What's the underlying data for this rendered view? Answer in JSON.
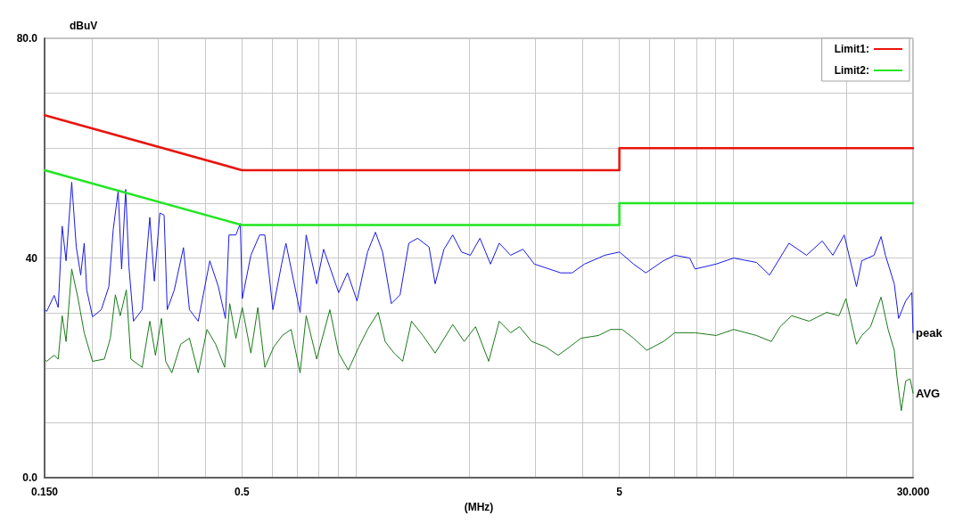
{
  "chart_data": {
    "type": "line",
    "ylabel": "dBuV",
    "xlabel": "(MHz)",
    "log": "x",
    "grid": true,
    "legend": "top right",
    "marker": "none",
    "line_style": "solid",
    "xlim": [
      0.15,
      30
    ],
    "ylim": [
      0,
      80
    ],
    "xticks": [
      {
        "value": 0.15,
        "label": "0.150"
      },
      {
        "value": 0.2,
        "label": null
      },
      {
        "value": 0.3,
        "label": null
      },
      {
        "value": 0.4,
        "label": null
      },
      {
        "value": 0.5,
        "label": "0.5"
      },
      {
        "value": 0.6,
        "label": null
      },
      {
        "value": 0.7,
        "label": null
      },
      {
        "value": 0.8,
        "label": null
      },
      {
        "value": 0.9,
        "label": null
      },
      {
        "value": 1,
        "label": null
      },
      {
        "value": 2,
        "label": null
      },
      {
        "value": 3,
        "label": null
      },
      {
        "value": 4,
        "label": null
      },
      {
        "value": 5,
        "label": "5"
      },
      {
        "value": 6,
        "label": null
      },
      {
        "value": 7,
        "label": null
      },
      {
        "value": 8,
        "label": null
      },
      {
        "value": 9,
        "label": null
      },
      {
        "value": 10,
        "label": null
      },
      {
        "value": 20,
        "label": null
      },
      {
        "value": 30,
        "label": "30.000"
      }
    ],
    "yticks": [
      {
        "value": 0,
        "label": "0.0"
      },
      {
        "value": 10,
        "label": null
      },
      {
        "value": 20,
        "label": null
      },
      {
        "value": 30,
        "label": null
      },
      {
        "value": 40,
        "label": "40"
      },
      {
        "value": 50,
        "label": null
      },
      {
        "value": 60,
        "label": null
      },
      {
        "value": 70,
        "label": null
      },
      {
        "value": 80,
        "label": "80.0"
      }
    ],
    "series": [
      {
        "name": "Limit1:",
        "color": "#e8140c",
        "x": [
          0.15,
          0.5,
          5,
          5,
          30
        ],
        "values": [
          66,
          56,
          56,
          60,
          60
        ]
      },
      {
        "name": "Limit2:",
        "color": "#22e622",
        "x": [
          0.15,
          0.5,
          5,
          5,
          30
        ],
        "values": [
          56,
          46,
          46,
          50,
          50
        ]
      },
      {
        "color": "#1a1ae6",
        "x": [
          0.15,
          0.152,
          0.159,
          0.163,
          0.167,
          0.171,
          0.177,
          0.182,
          0.187,
          0.191,
          0.194,
          0.201,
          0.212,
          0.222,
          0.228,
          0.235,
          0.24,
          0.246,
          0.251,
          0.258,
          0.272,
          0.285,
          0.293,
          0.303,
          0.311,
          0.317,
          0.331,
          0.35,
          0.363,
          0.383,
          0.411,
          0.433,
          0.452,
          0.462,
          0.482,
          0.495,
          0.501,
          0.528,
          0.557,
          0.575,
          0.604,
          0.637,
          0.654,
          0.713,
          0.74,
          0.789,
          0.823,
          0.902,
          0.952,
          1.009,
          1.076,
          1.129,
          1.179,
          1.244,
          1.312,
          1.384,
          1.46,
          1.566,
          1.625,
          1.715,
          1.809,
          1.909,
          2.014,
          2.136,
          2.278,
          2.403,
          2.576,
          2.777,
          2.977,
          3.261,
          3.496,
          3.748,
          4.041,
          4.401,
          4.57,
          5.006,
          5.452,
          5.877,
          6.541,
          7.011,
          7.68,
          7.931,
          9.019,
          10.04,
          11.54,
          12.5,
          14.07,
          15.66,
          17.24,
          18.39,
          19.71,
          21.24,
          21.94,
          23.64,
          24.68,
          25.35,
          26.75,
          27.47,
          28.68,
          29.77,
          30
        ],
        "values": [
          30.6,
          30.3,
          33.2,
          31,
          45.8,
          39.5,
          53.8,
          42,
          36.9,
          42.7,
          34.2,
          29.3,
          30.6,
          34.8,
          45.2,
          52.2,
          38,
          52.5,
          38.4,
          28.5,
          30.6,
          47.4,
          35.8,
          48.2,
          47.8,
          30.6,
          34.2,
          41.9,
          30.6,
          28.5,
          39.5,
          34.8,
          29,
          44.2,
          44.2,
          46.3,
          32.6,
          40.5,
          44.2,
          44.2,
          30.6,
          38.9,
          42.7,
          30.1,
          44.2,
          35.3,
          41.6,
          33.7,
          37.3,
          32.2,
          41.1,
          44.7,
          41.1,
          31.7,
          33.3,
          42.7,
          43.6,
          42,
          35.3,
          41.6,
          44.2,
          41.1,
          40.5,
          43.6,
          38.9,
          42.7,
          40.5,
          41.6,
          38.9,
          38,
          37.3,
          37.3,
          38.9,
          40,
          40.5,
          41.1,
          38.9,
          37.3,
          39.5,
          40.5,
          40,
          38,
          38.9,
          40,
          39.2,
          36.9,
          42.7,
          40.5,
          43.1,
          40.5,
          44.2,
          34.8,
          39.5,
          40.5,
          43.9,
          40.5,
          35.3,
          29,
          32.2,
          33.7,
          26.4
        ]
      },
      {
        "color": "#1a7a1a",
        "x": [
          0.15,
          0.152,
          0.159,
          0.163,
          0.167,
          0.171,
          0.177,
          0.184,
          0.191,
          0.201,
          0.216,
          0.224,
          0.231,
          0.238,
          0.247,
          0.254,
          0.272,
          0.285,
          0.295,
          0.306,
          0.314,
          0.326,
          0.344,
          0.363,
          0.383,
          0.404,
          0.426,
          0.45,
          0.464,
          0.482,
          0.501,
          0.528,
          0.551,
          0.575,
          0.607,
          0.64,
          0.675,
          0.713,
          0.74,
          0.789,
          0.855,
          0.902,
          0.957,
          1.02,
          1.076,
          1.148,
          1.198,
          1.264,
          1.333,
          1.407,
          1.508,
          1.625,
          1.809,
          1.94,
          2.079,
          2.253,
          2.403,
          2.576,
          2.718,
          2.93,
          3.192,
          3.441,
          3.689,
          3.954,
          4.401,
          4.743,
          5.087,
          5.452,
          5.909,
          6.541,
          7.011,
          7.931,
          9.019,
          10.04,
          11.54,
          12.64,
          13.33,
          14.3,
          15.91,
          17.71,
          19.09,
          19.92,
          21.24,
          21.94,
          23.14,
          24.68,
          25.76,
          26.75,
          27.18,
          27.92,
          28.68,
          29.46,
          30
        ],
        "values": [
          21.5,
          21.2,
          22.3,
          21.6,
          29.5,
          24.8,
          38,
          32.6,
          26.4,
          21.2,
          21.6,
          25.4,
          33.3,
          29.5,
          34.2,
          21.6,
          20.1,
          28.5,
          22.3,
          29,
          21.2,
          19.1,
          24.3,
          25.4,
          19.1,
          27,
          24.3,
          20.1,
          31.7,
          25.4,
          31,
          22.7,
          31,
          20.1,
          23.8,
          25.9,
          27,
          19.1,
          29.5,
          21.6,
          30.6,
          22.7,
          19.6,
          23.8,
          27,
          30.1,
          24.8,
          22.7,
          21.2,
          28.5,
          25.9,
          22.7,
          27.9,
          24.8,
          27.5,
          21.2,
          28.5,
          26.4,
          27.5,
          24.8,
          23.8,
          22.3,
          23.8,
          25.4,
          25.9,
          27,
          27,
          25.4,
          23.2,
          24.8,
          26.4,
          26.4,
          25.9,
          27,
          25.9,
          24.8,
          27.5,
          29.5,
          28.5,
          30.1,
          29.5,
          32.6,
          24.3,
          25.9,
          27.5,
          32.9,
          27,
          23.2,
          18.5,
          12.2,
          17.6,
          18,
          15.4
        ]
      }
    ],
    "annotations": [
      {
        "text": "peak",
        "x": 30,
        "y": 26.4
      },
      {
        "text": "AVG",
        "x": 30,
        "y": 15.4
      }
    ]
  }
}
